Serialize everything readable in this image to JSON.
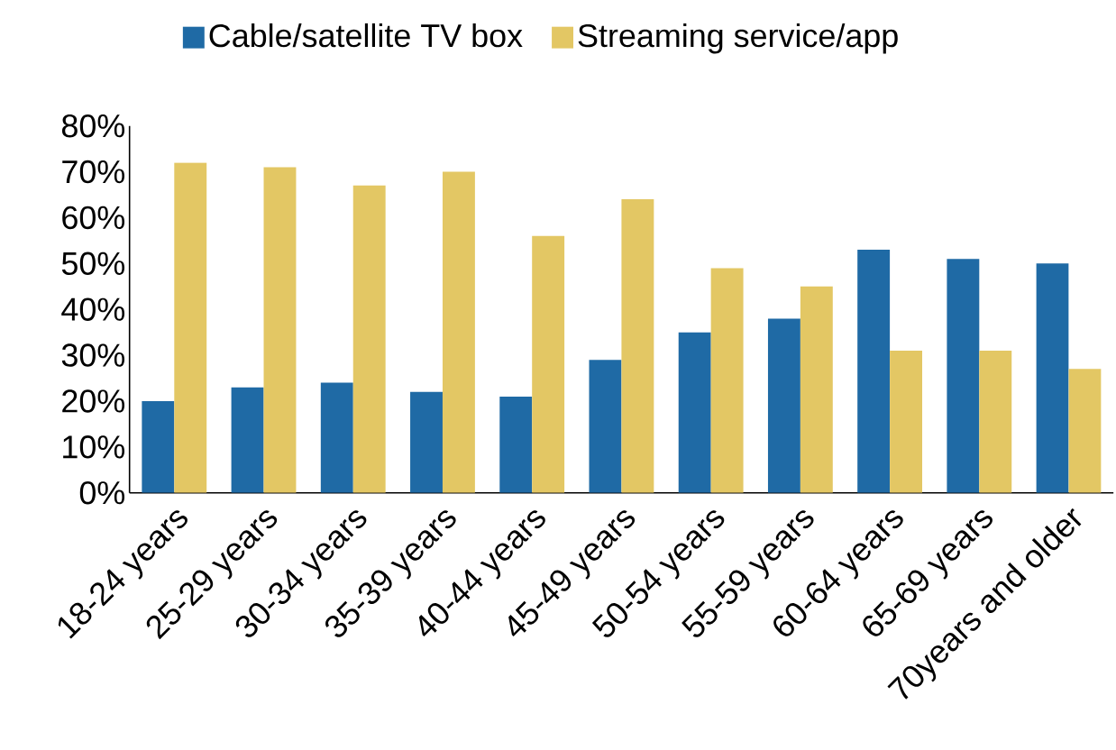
{
  "chart_data": {
    "type": "bar",
    "categories": [
      "18-24 years",
      "25-29 years",
      "30-34 years",
      "35-39 years",
      "40-44 years",
      "45-49 years",
      "50-54 years",
      "55-59 years",
      "60-64 years",
      "65-69 years",
      "70years and older"
    ],
    "series": [
      {
        "name": "Cable/satellite TV box",
        "color": "#1f6aa5",
        "values": [
          20,
          23,
          24,
          22,
          21,
          29,
          35,
          38,
          53,
          51,
          50
        ]
      },
      {
        "name": "Streaming service/app",
        "color": "#e3c764",
        "values": [
          72,
          71,
          67,
          70,
          56,
          64,
          49,
          45,
          31,
          31,
          27
        ]
      }
    ],
    "ylim": [
      0,
      80
    ],
    "yticks": [
      {
        "value": 0,
        "label": "0%"
      },
      {
        "value": 10,
        "label": "10%"
      },
      {
        "value": 20,
        "label": "20%"
      },
      {
        "value": 30,
        "label": "30%"
      },
      {
        "value": 40,
        "label": "40%"
      },
      {
        "value": 50,
        "label": "50%"
      },
      {
        "value": 60,
        "label": "60%"
      },
      {
        "value": 70,
        "label": "70%"
      },
      {
        "value": 80,
        "label": "80%"
      }
    ],
    "grid": false,
    "legend": "top"
  }
}
